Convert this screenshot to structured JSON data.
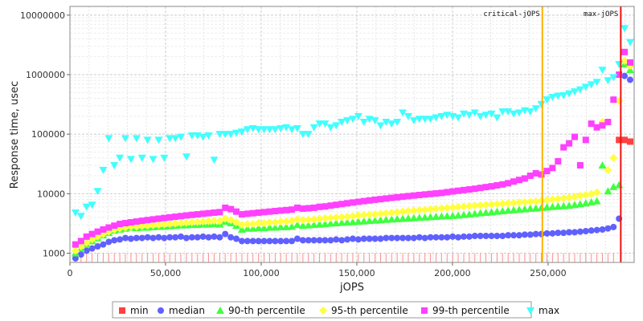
{
  "chart_data": {
    "type": "scatter",
    "title": "",
    "xlabel": "jOPS",
    "ylabel": "Response time, usec",
    "y_scale": "log",
    "xlim": [
      0,
      295000
    ],
    "ylim": [
      700,
      14000000
    ],
    "grid": true,
    "legend_position": "bottom",
    "x_tick_labels": [
      "0",
      "50,000",
      "100,000",
      "150,000",
      "200,000",
      "250,000"
    ],
    "x_tick_values": [
      0,
      50000,
      100000,
      150000,
      200000,
      250000
    ],
    "y_tick_labels": [
      "1000",
      "10000",
      "100000",
      "1000000",
      "10000000"
    ],
    "y_tick_values": [
      1000,
      10000,
      100000,
      1000000,
      10000000
    ],
    "x": [
      2900,
      5800,
      8700,
      11600,
      14500,
      17400,
      20300,
      23200,
      26100,
      29000,
      31900,
      34800,
      37700,
      40600,
      43500,
      46400,
      49300,
      52200,
      55100,
      58000,
      60900,
      63800,
      66700,
      69600,
      72500,
      75400,
      78300,
      81200,
      84100,
      87000,
      89900,
      92800,
      95700,
      98600,
      101500,
      104400,
      107300,
      110200,
      113100,
      116000,
      118900,
      121800,
      124700,
      127600,
      130500,
      133400,
      136300,
      139200,
      142100,
      145000,
      147900,
      150800,
      153700,
      156600,
      159500,
      162400,
      165300,
      168200,
      171100,
      174000,
      176900,
      179800,
      182700,
      185600,
      188500,
      191400,
      194300,
      197200,
      200100,
      203000,
      205900,
      208800,
      211700,
      214600,
      217500,
      220400,
      223300,
      226200,
      229100,
      232000,
      234900,
      237800,
      240700,
      243600,
      246500,
      249400,
      252300,
      255200,
      258100,
      261000,
      263900,
      266800,
      269700,
      272600,
      275500,
      278400,
      281300,
      284200,
      287100,
      290000,
      292900
    ],
    "series": [
      {
        "name": "min",
        "color": "#ff4040",
        "marker": "square",
        "values": [
          1000,
          1000,
          1000,
          1000,
          1000,
          1000,
          1000,
          1000,
          1000,
          1000,
          1000,
          1000,
          1000,
          1000,
          1000,
          1000,
          1000,
          1000,
          1000,
          1000,
          1000,
          1000,
          1000,
          1000,
          1000,
          1000,
          1000,
          1000,
          1000,
          1000,
          1000,
          1000,
          1000,
          1000,
          1000,
          1000,
          1000,
          1000,
          1000,
          1000,
          1000,
          1000,
          1000,
          1000,
          1000,
          1000,
          1000,
          1000,
          1000,
          1000,
          1000,
          1000,
          1000,
          1000,
          1000,
          1000,
          1000,
          1000,
          1000,
          1000,
          1000,
          1000,
          1000,
          1000,
          1000,
          1000,
          1000,
          1000,
          1000,
          1000,
          1000,
          1000,
          1000,
          1000,
          1000,
          1000,
          1000,
          1000,
          1000,
          1000,
          1000,
          1000,
          1000,
          1000,
          1000,
          1000,
          1000,
          1000,
          1000,
          1000,
          1000,
          1000,
          1000,
          1000,
          1000,
          1000,
          1000,
          1000,
          80000,
          80000,
          75000
        ]
      },
      {
        "name": "median",
        "color": "#6060ff",
        "marker": "circle",
        "values": [
          820,
          950,
          1100,
          1200,
          1300,
          1400,
          1550,
          1650,
          1700,
          1800,
          1750,
          1800,
          1800,
          1850,
          1800,
          1850,
          1800,
          1850,
          1850,
          1900,
          1800,
          1850,
          1850,
          1900,
          1850,
          1900,
          1850,
          2100,
          1850,
          1750,
          1600,
          1600,
          1600,
          1600,
          1600,
          1600,
          1600,
          1600,
          1600,
          1600,
          1750,
          1650,
          1650,
          1650,
          1650,
          1650,
          1650,
          1700,
          1650,
          1700,
          1750,
          1700,
          1750,
          1750,
          1750,
          1750,
          1800,
          1800,
          1800,
          1800,
          1800,
          1800,
          1850,
          1800,
          1850,
          1850,
          1850,
          1850,
          1900,
          1850,
          1900,
          1900,
          1950,
          1950,
          1950,
          1950,
          1950,
          1950,
          2000,
          2000,
          2000,
          2050,
          2050,
          2100,
          2100,
          2150,
          2150,
          2200,
          2200,
          2250,
          2250,
          2300,
          2350,
          2400,
          2450,
          2500,
          2600,
          2750,
          3800,
          950000,
          820000
        ]
      },
      {
        "name": "90-th percentile",
        "color": "#40ff40",
        "marker": "triangle-up",
        "values": [
          1000,
          1200,
          1400,
          1600,
          1800,
          2000,
          2200,
          2400,
          2500,
          2600,
          2700,
          2650,
          2700,
          2700,
          2750,
          2800,
          2800,
          2850,
          2900,
          2950,
          2950,
          3000,
          3000,
          3050,
          3050,
          3100,
          3050,
          3400,
          3200,
          2900,
          2500,
          2600,
          2600,
          2650,
          2650,
          2700,
          2700,
          2750,
          2750,
          2800,
          3000,
          2900,
          2950,
          3000,
          3050,
          3100,
          3150,
          3200,
          3250,
          3300,
          3350,
          3400,
          3450,
          3500,
          3550,
          3600,
          3650,
          3700,
          3750,
          3800,
          3850,
          3900,
          3950,
          4000,
          4050,
          4100,
          4150,
          4200,
          4250,
          4300,
          4400,
          4500,
          4600,
          4700,
          4800,
          4900,
          5000,
          5100,
          5200,
          5300,
          5400,
          5500,
          5600,
          5700,
          5800,
          5900,
          6000,
          6100,
          6200,
          6300,
          6500,
          6700,
          6900,
          7200,
          7500,
          30000,
          11000,
          13000,
          14000,
          1500000,
          1200000
        ]
      },
      {
        "name": "95-th percentile",
        "color": "#ffff40",
        "marker": "diamond",
        "values": [
          1100,
          1300,
          1500,
          1700,
          1900,
          2100,
          2300,
          2500,
          2600,
          2700,
          2800,
          2800,
          2850,
          2900,
          2950,
          3000,
          3050,
          3100,
          3150,
          3200,
          3250,
          3300,
          3350,
          3400,
          3450,
          3500,
          3450,
          3800,
          3600,
          3300,
          3000,
          3100,
          3100,
          3200,
          3200,
          3300,
          3300,
          3400,
          3400,
          3500,
          3700,
          3600,
          3650,
          3700,
          3800,
          3850,
          3900,
          4000,
          4050,
          4100,
          4200,
          4300,
          4400,
          4450,
          4500,
          4600,
          4700,
          4800,
          4900,
          5000,
          5100,
          5200,
          5300,
          5400,
          5500,
          5600,
          5700,
          5800,
          5900,
          6000,
          6100,
          6200,
          6300,
          6400,
          6500,
          6600,
          6700,
          6800,
          6900,
          7000,
          7100,
          7200,
          7300,
          7400,
          7600,
          7800,
          8000,
          8200,
          8400,
          8600,
          8900,
          9200,
          9500,
          9900,
          10500,
          160000,
          25000,
          40000,
          360000,
          1700000,
          1400000
        ]
      },
      {
        "name": "99-th percentile",
        "color": "#ff40ff",
        "marker": "square",
        "values": [
          1400,
          1600,
          1900,
          2100,
          2300,
          2500,
          2700,
          2900,
          3100,
          3200,
          3300,
          3400,
          3500,
          3600,
          3700,
          3800,
          3900,
          4000,
          4100,
          4200,
          4300,
          4400,
          4500,
          4600,
          4700,
          4800,
          4900,
          5800,
          5500,
          5000,
          4500,
          4600,
          4700,
          4800,
          4900,
          5000,
          5100,
          5200,
          5300,
          5400,
          5800,
          5600,
          5700,
          5800,
          6000,
          6100,
          6300,
          6500,
          6700,
          6900,
          7100,
          7300,
          7500,
          7700,
          7900,
          8100,
          8300,
          8500,
          8700,
          8900,
          9100,
          9300,
          9500,
          9700,
          9900,
          10100,
          10300,
          10600,
          10900,
          11200,
          11500,
          11800,
          12100,
          12500,
          12900,
          13300,
          13800,
          14300,
          15000,
          16000,
          17000,
          18000,
          20000,
          22000,
          21000,
          24000,
          27000,
          35000,
          60000,
          70000,
          90000,
          30000,
          80000,
          150000,
          130000,
          140000,
          160000,
          380000,
          1000000,
          2400000,
          1600000
        ]
      },
      {
        "name": "max",
        "color": "#40ffff",
        "marker": "triangle-down",
        "values": [
          4800,
          4200,
          6000,
          6500,
          11000,
          25000,
          85000,
          30000,
          40000,
          85000,
          38000,
          85000,
          40000,
          80000,
          38000,
          80000,
          40000,
          85000,
          85000,
          90000,
          42000,
          95000,
          95000,
          90000,
          95000,
          37000,
          100000,
          100000,
          100000,
          105000,
          110000,
          120000,
          125000,
          120000,
          120000,
          120000,
          120000,
          125000,
          130000,
          120000,
          125000,
          100000,
          100000,
          130000,
          150000,
          150000,
          130000,
          140000,
          160000,
          170000,
          180000,
          200000,
          160000,
          180000,
          170000,
          140000,
          160000,
          150000,
          160000,
          230000,
          200000,
          170000,
          180000,
          180000,
          180000,
          190000,
          200000,
          210000,
          200000,
          190000,
          220000,
          210000,
          230000,
          200000,
          210000,
          220000,
          190000,
          240000,
          240000,
          220000,
          230000,
          250000,
          240000,
          270000,
          320000,
          380000,
          420000,
          440000,
          450000,
          480000,
          520000,
          560000,
          620000,
          680000,
          750000,
          1200000,
          800000,
          900000,
          1500000,
          6000000,
          3500000
        ]
      }
    ],
    "markers": [
      {
        "label": "critical-jOPS",
        "x": 247000,
        "color": "#ffb000"
      },
      {
        "label": "max-jOPS",
        "x": 288000,
        "color": "#ee1010"
      }
    ]
  }
}
